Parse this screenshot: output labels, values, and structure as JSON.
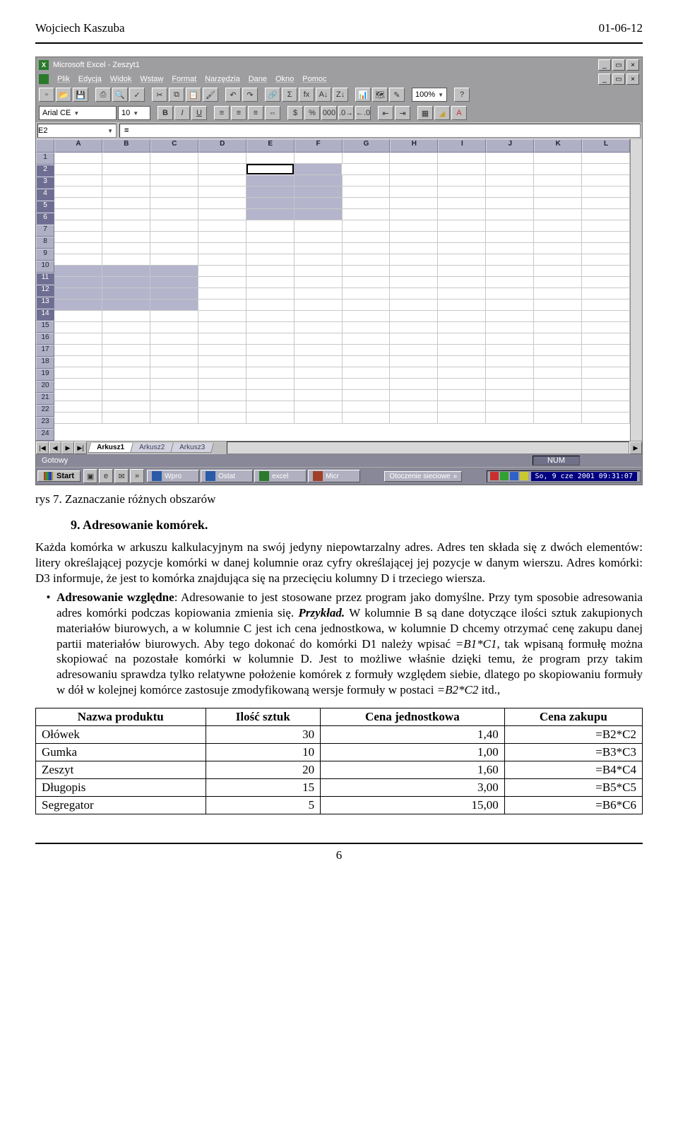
{
  "doc_header": {
    "author": "Wojciech Kaszuba",
    "date": "01-06-12"
  },
  "excel": {
    "title": "Microsoft Excel - Zeszyt1",
    "menu": [
      "Plik",
      "Edycja",
      "Widok",
      "Wstaw",
      "Format",
      "Narzędzia",
      "Dane",
      "Okno",
      "Pomoc"
    ],
    "zoom": "100%",
    "font_name": "Arial CE",
    "font_size": "10",
    "namebox": "E2",
    "formula": "",
    "columns": [
      "A",
      "B",
      "C",
      "D",
      "E",
      "F",
      "G",
      "H",
      "I",
      "J",
      "K",
      "L"
    ],
    "row_count": 24,
    "selected_row_headers": [
      2,
      3,
      4,
      5,
      6,
      11,
      12,
      13,
      14
    ],
    "selection_ranges": [
      {
        "r1": 2,
        "r2": 6,
        "c1": 4,
        "c2": 5
      },
      {
        "r1": 11,
        "r2": 14,
        "c1": 0,
        "c2": 2
      }
    ],
    "active_cell": {
      "r": 2,
      "c": 4
    },
    "sheet_tabs": [
      "Arkusz1",
      "Arkusz2",
      "Arkusz3"
    ],
    "active_tab": 0,
    "status_left": "Gotowy",
    "status_num": "NUM",
    "taskbar": {
      "start": "Start",
      "tasks": [
        {
          "icon": "#2a5aa8",
          "label": "Wpro"
        },
        {
          "icon": "#2a5aa8",
          "label": "Ostat"
        },
        {
          "icon": "#2a7a2a",
          "label": "excel"
        },
        {
          "icon": "#a04028",
          "label": "Micr"
        }
      ],
      "net_label": "Otoczenie sieciowe",
      "tray_icons": [
        "#c83030",
        "#30a030",
        "#3060c8",
        "#c8c830"
      ],
      "clock": "So, 9 cze 2001  09:31:07"
    },
    "colors": {
      "hdr_bg": "#b0b0c4",
      "hdr_sel": "#6e6e92",
      "cell_sel": "#b4b4cc",
      "menubar": "#9e9ea0",
      "status": "#888898"
    }
  },
  "caption": "rys 7. Zaznaczanie różnych obszarów",
  "section_title": "9.   Adresowanie komórek.",
  "p1a": "Każda komórka w arkuszu kalkulacyjnym na swój jedyny niepowtarzalny adres. Adres ten składa się z dwóch elementów: litery określającej pozycje komórki w danej kolumnie oraz cyfry określającej jej pozycje w danym wierszu. Adres komórki: D3 informuje, że jest to komórka znajdująca się na przecięciu kolumny D i trzeciego wiersza.",
  "bullet": {
    "lead": "Adresowanie względne",
    "after_lead": ": Adresowanie to jest stosowane przez program jako domyślne. Przy tym sposobie adresowania adres komórki podczas kopiowania zmienia się. ",
    "przyklad": "Przykład.",
    "body1": " W kolumnie B są dane dotyczące ilości sztuk zakupionych materiałów biurowych, a w kolumnie C jest ich cena jednostkowa, w kolumnie D chcemy otrzymać cenę zakupu danej partii materiałów biurowych. Aby tego dokonać do komórki D1 należy wpisać ",
    "f1": "=B1*C1",
    "body2": ", tak wpisaną formułę można skopiować na pozostałe komórki w kolumnie D. Jest to możliwe właśnie dzięki temu, że program przy takim adresowaniu sprawdza tylko relatywne położenie komórek z formuły względem siebie, dlatego po skopiowaniu formuły w dół w kolejnej komórce zastosuje zmodyfikowaną wersje formuły w postaci ",
    "f2": "=B2*C2",
    "body3": " itd.,"
  },
  "table": {
    "headers": [
      "Nazwa produktu",
      "Ilość sztuk",
      "Cena jednostkowa",
      "Cena zakupu"
    ],
    "rows": [
      [
        "Ołówek",
        "30",
        "1,40",
        "=B2*C2"
      ],
      [
        "Gumka",
        "10",
        "1,00",
        "=B3*C3"
      ],
      [
        "Zeszyt",
        "20",
        "1,60",
        "=B4*C4"
      ],
      [
        "Długopis",
        "15",
        "3,00",
        "=B5*C5"
      ],
      [
        "Segregator",
        "5",
        "15,00",
        "=B6*C6"
      ]
    ],
    "col_align": [
      "left",
      "right",
      "right",
      "right"
    ]
  },
  "page_number": "6"
}
